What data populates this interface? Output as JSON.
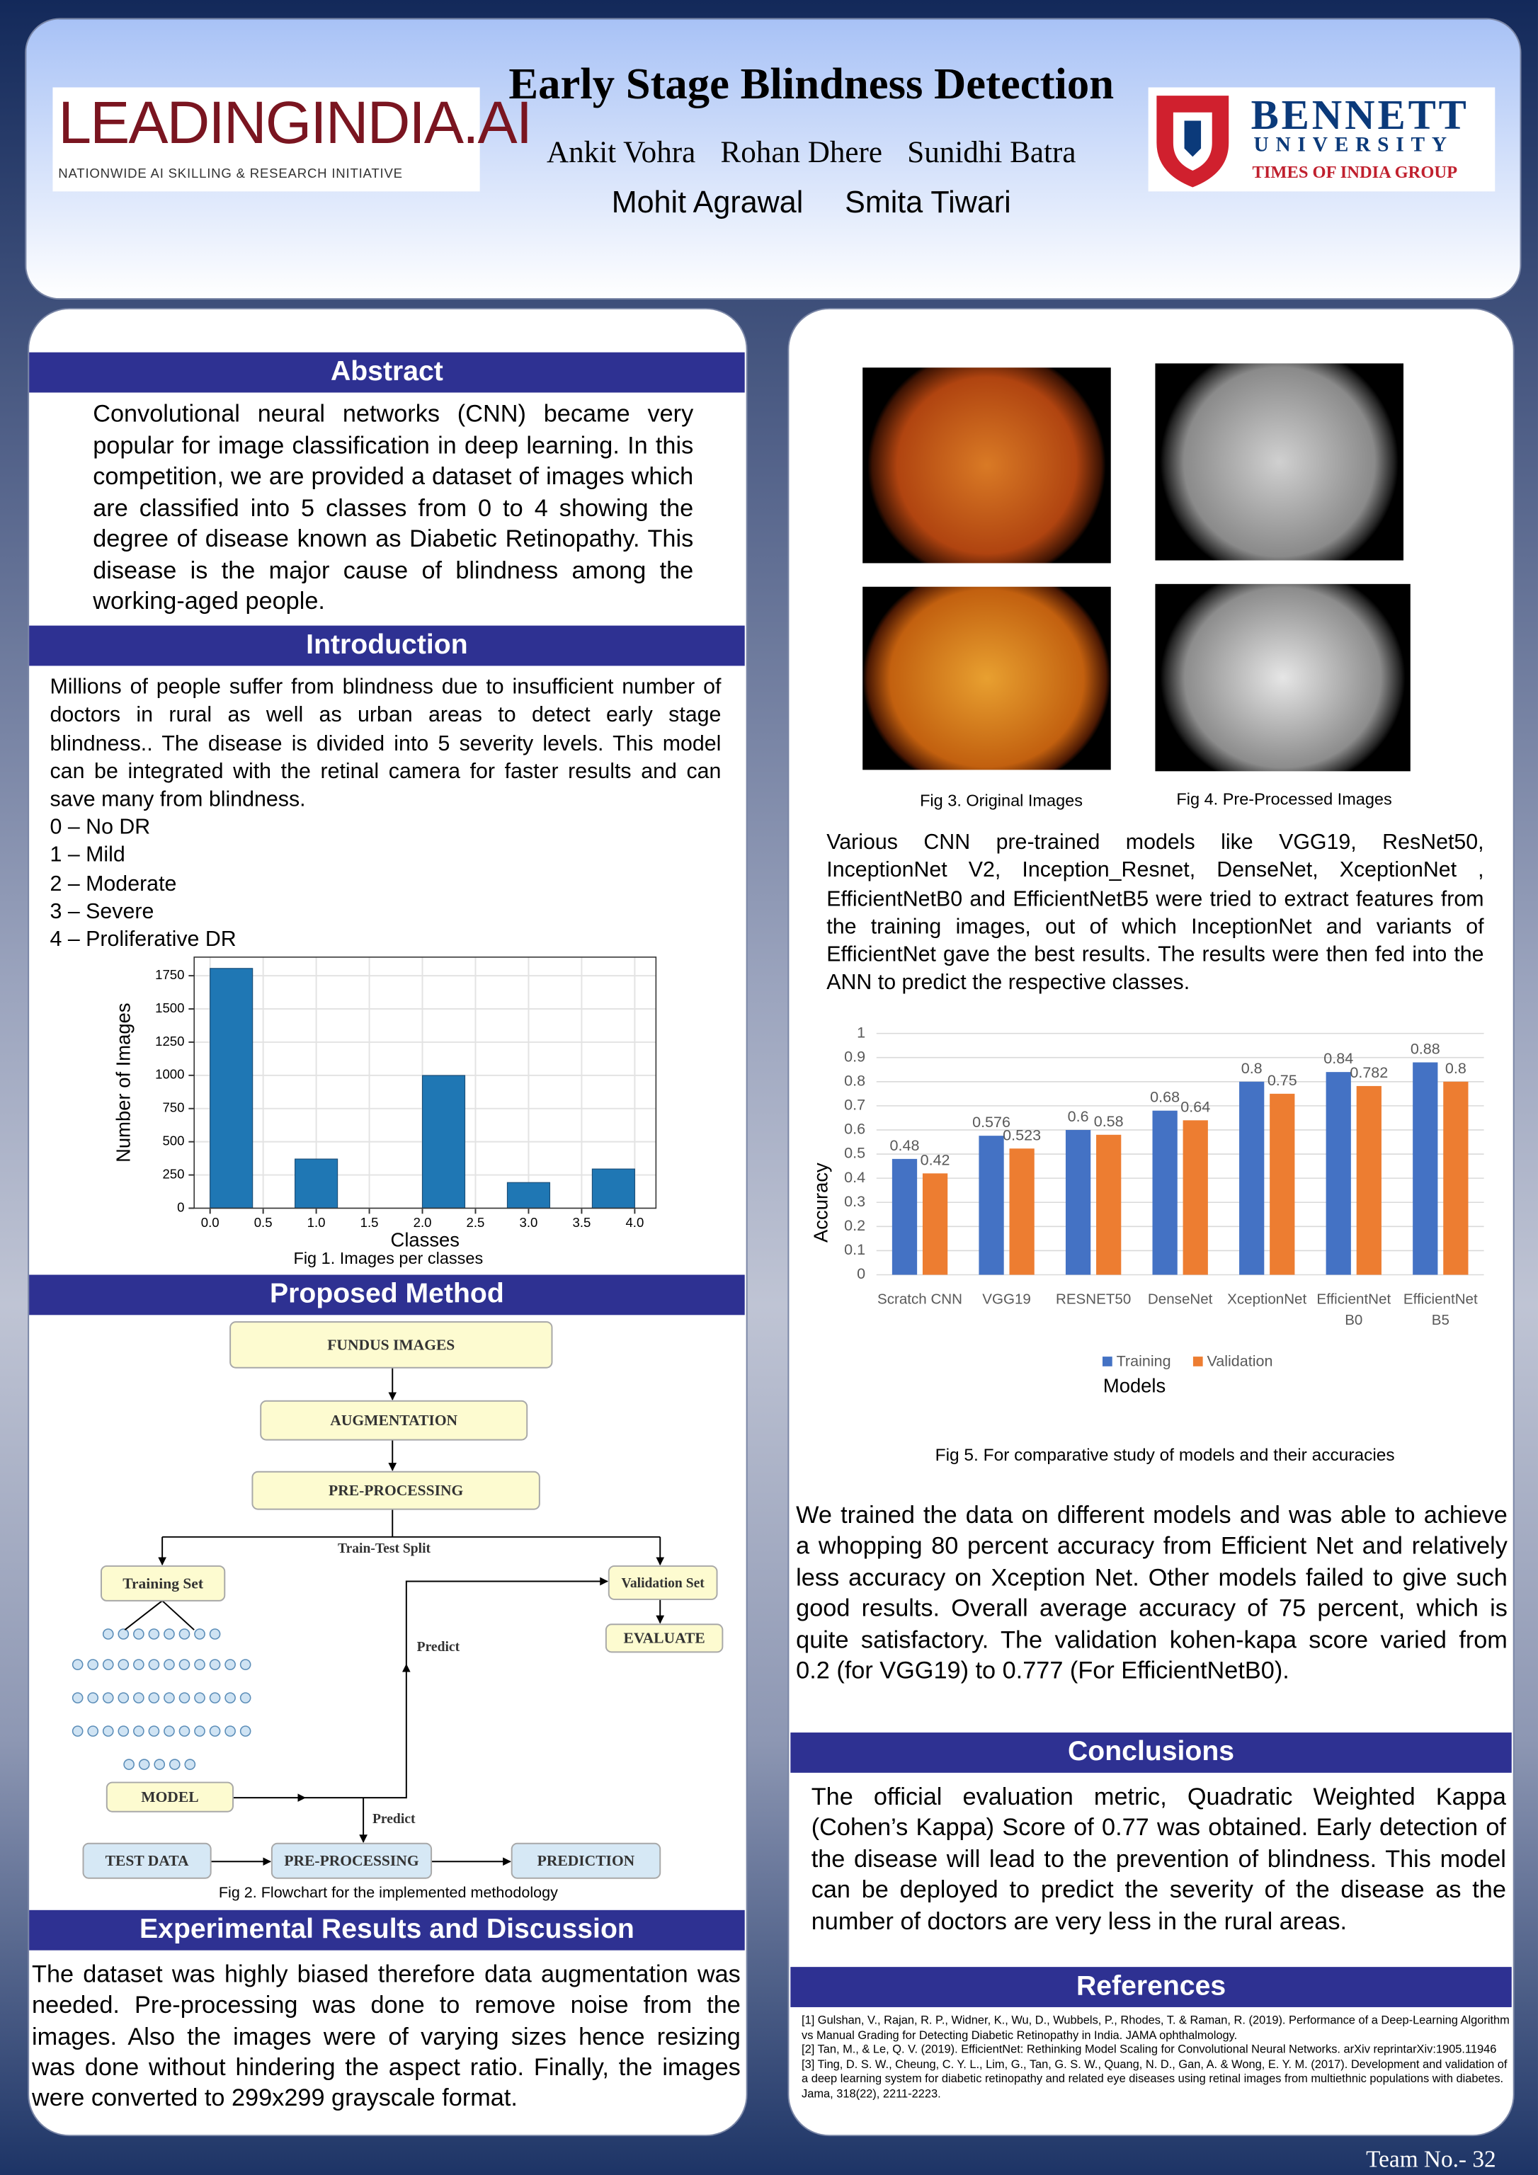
{
  "header": {
    "title": "Early Stage Blindness Detection",
    "authors": [
      "Ankit Vohra",
      "Rohan Dhere",
      "Sunidhi Batra"
    ],
    "authors_line2": [
      "Mohit Agrawal",
      "Smita Tiwari"
    ],
    "logo_left": {
      "name": "LEADINGINDIA.AI",
      "tagline": "NATIONWIDE AI SKILLING & RESEARCH INITIATIVE"
    },
    "logo_right": {
      "name": "BENNETT",
      "subtitle": "UNIVERSITY",
      "group": "TIMES OF INDIA GROUP"
    }
  },
  "abstract": {
    "heading": "Abstract",
    "text": "Convolutional neural networks (CNN) became very popular for image classification in deep learning. In this competition, we are provided a dataset of images which are classified into 5 classes from 0 to 4 showing the degree of disease known as Diabetic Retinopathy. This disease is the major cause of blindness among the working-aged people."
  },
  "introduction": {
    "heading": "Introduction",
    "text": "Millions of people suffer from blindness due to insufficient number of doctors in rural as well as urban areas to detect early stage blindness.. The disease is divided into 5 severity levels. This model can be integrated with the retinal camera for faster results and can save many from blindness.",
    "classes": [
      "0 – No DR",
      "1 – Mild",
      "2 – Moderate",
      "3 – Severe",
      "4 – Proliferative DR"
    ]
  },
  "fig1_caption": "Fig 1. Images per classes",
  "proposed_method": {
    "heading": "Proposed  Method",
    "flowchart": {
      "nodes": [
        "FUNDUS IMAGES",
        "AUGMENTATION",
        "PRE-PROCESSING",
        "Training Set",
        "Validation Set",
        "EVALUATE",
        "MODEL",
        "TEST DATA",
        "PRE-PROCESSING",
        "PREDICTION"
      ],
      "edge_labels": [
        "Train-Test Split",
        "Predict",
        "Predict"
      ]
    },
    "caption": "Fig 2. Flowchart  for the implemented methodology"
  },
  "experimental": {
    "heading": "Experimental Results and Discussion",
    "text": "The dataset was highly biased therefore data augmentation was needed. Pre-processing was done to remove noise from the images. Also the images were of varying sizes hence resizing was done without hindering the aspect ratio. Finally, the images were converted to 299x299 grayscale format."
  },
  "figures": {
    "fig3_caption": "Fig 3. Original Images",
    "fig4_caption": "Fig 4. Pre-Processed Images"
  },
  "models_text": "Various CNN pre-trained models like VGG19, ResNet50, InceptionNet V2, Inception_Resnet, DenseNet, XceptionNet , EfficientNetB0 and EfficientNetB5 were tried to extract features from the training images, out of which InceptionNet and variants of EfficientNet gave the best results. The results were then fed into the ANN to predict the respective classes.",
  "fig5_caption": "Fig 5. For comparative study of models and their accuracies",
  "results_text": "We trained the data on different models and was able to achieve a whopping 80 percent accuracy from Efficient Net and relatively less accuracy on Xception Net. Other models failed to give such good results. Overall average accuracy of 75 percent, which is quite satisfactory. The validation kohen-kapa score varied from 0.2 (for VGG19) to 0.777 (For EfficientNetB0).",
  "conclusions": {
    "heading": "Conclusions",
    "text": "The official evaluation metric, Quadratic Weighted Kappa (Cohen’s Kappa) Score of 0.77 was obtained. Early detection of the disease will lead to the prevention of blindness. This model can be deployed to predict the severity of the disease as the number of doctors are very less in the rural areas."
  },
  "references": {
    "heading": "References",
    "items": [
      "[1] Gulshan, V., Rajan, R. P., Widner, K., Wu, D., Wubbels, P., Rhodes, T. & Raman, R. (2019). Performance of a  Deep-Learning Algorithm  vs Manual Grading for Detecting Diabetic Retinopathy in India. JAMA ophthalmology.",
      "[2] Tan, M., & Le, Q. V. (2019). EfficientNet: Rethinking Model Scaling for Convolutional Neural Networks. arXiv reprintarXiv:1905.11946",
      "[3] Ting, D. S. W., Cheung, C. Y. L., Lim, G., Tan, G. S. W., Quang, N. D., Gan, A. & Wong, E. Y. M. (2017). Development and validation of a deep learning system for diabetic retinopathy and related eye diseases using retinal images from multiethnic populations with diabetes. Jama, 318(22), 2211-2223."
    ]
  },
  "footer": "Team No.- 32",
  "chart_data": [
    {
      "type": "histogram",
      "xlabel": "Classes",
      "ylabel": "Number of Images",
      "bins": [
        0,
        0.4,
        0.8,
        1.2,
        1.6,
        2,
        2.4,
        2.8,
        3.2,
        3.6,
        4
      ],
      "values": [
        1805,
        0,
        370,
        0,
        0,
        999,
        0,
        193,
        0,
        295
      ],
      "color": "#1f77b4",
      "xlim": [
        -0.15,
        4.2
      ],
      "ylim": [
        0,
        1890
      ],
      "xticks": [
        {
          "value": 0,
          "label": "0.0"
        },
        0.5,
        {
          "value": 1,
          "label": "1.0"
        },
        1.5,
        {
          "value": 2,
          "label": "2.0"
        },
        2.5,
        {
          "value": 3,
          "label": "3.0"
        },
        3.5,
        {
          "value": 4,
          "label": "4.0"
        }
      ],
      "yticks": [
        0,
        250,
        500,
        750,
        1000,
        1250,
        1500,
        1750
      ],
      "grid": true
    },
    {
      "type": "bar",
      "xlabel": "Models",
      "ylabel": "Accuracy",
      "categories": [
        "Scratch CNN",
        "VGG19",
        "RESNET50",
        "DenseNet",
        "XceptionNet",
        "EfficientNet B0",
        "EfficientNet B5"
      ],
      "series": [
        {
          "name": "Training",
          "color": "#4472c4",
          "values": [
            0.48,
            0.576,
            0.6,
            0.68,
            0.8,
            0.84,
            0.88
          ]
        },
        {
          "name": "Validation",
          "color": "#ed7d31",
          "values": [
            0.42,
            0.523,
            0.58,
            0.64,
            0.75,
            0.782,
            0.8
          ]
        }
      ],
      "ylim": [
        0,
        1
      ],
      "yticks": [
        0,
        0.1,
        0.2,
        0.3,
        0.4,
        0.5,
        0.6,
        0.7,
        0.8,
        0.9,
        1
      ],
      "grid": true,
      "legend": "bottom"
    }
  ]
}
